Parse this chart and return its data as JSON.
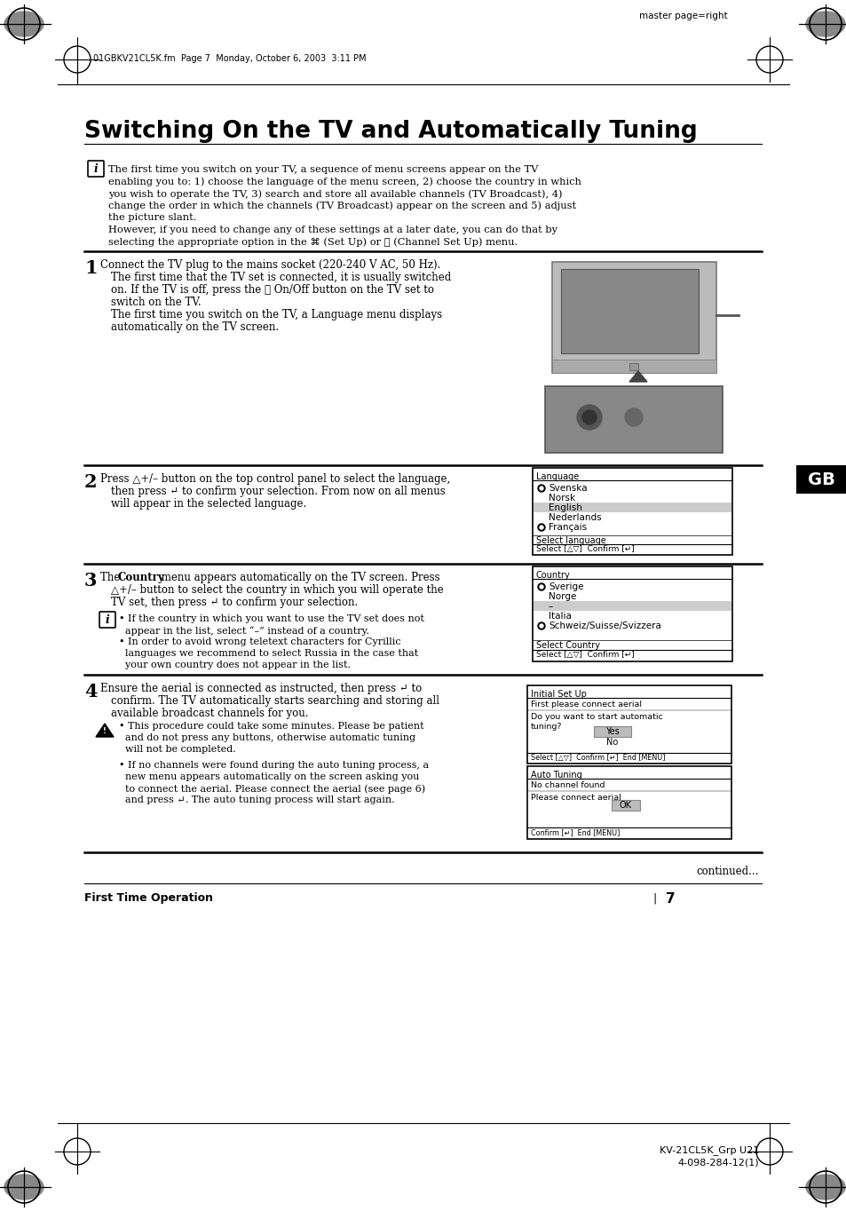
{
  "title": "Switching On the TV and Automatically Tuning",
  "header_text": "master page=right",
  "file_info": "01GBKV21CL5K.fm  Page 7  Monday, October 6, 2003  3:11 PM",
  "bg_color": "#ffffff",
  "step1_text_lines": [
    "Connect the TV plug to the mains socket (220-240 V AC, 50 Hz).",
    "The first time that the TV set is connected, it is usually switched",
    "on. If the TV is off, press the Ⓣ On/Off button on the TV set to",
    "switch on the TV.",
    "The first time you switch on the TV, a Language menu displays",
    "automatically on the TV screen."
  ],
  "step2_text_lines": [
    "Press △+/– button on the top control panel to select the language,",
    "then press ↵ to confirm your selection. From now on all menus",
    "will appear in the selected language."
  ],
  "step3_text_lines": [
    "The Country menu appears automatically on the TV screen. Press",
    "△+/– button to select the country in which you will operate the",
    "TV set, then press ↵ to confirm your selection."
  ],
  "step3_note1_lines": [
    "• If the country in which you want to use the TV set does not",
    "  appear in the list, select “–” instead of a country."
  ],
  "step3_note2_lines": [
    "• In order to avoid wrong teletext characters for Cyrillic",
    "  languages we recommend to select Russia in the case that",
    "  your own country does not appear in the list."
  ],
  "step4_text_lines": [
    "Ensure the aerial is connected as instructed, then press ↵ to",
    "confirm. The TV automatically starts searching and storing all",
    "available broadcast channels for you."
  ],
  "step4_note1_lines": [
    "• This procedure could take some minutes. Please be patient",
    "  and do not press any buttons, otherwise automatic tuning",
    "  will not be completed."
  ],
  "step4_note2_lines": [
    "• If no channels were found during the auto tuning process, a",
    "  new menu appears automatically on the screen asking you",
    "  to connect the aerial. Please connect the aerial (see page 6)",
    "  and press ↵. The auto tuning process will start again."
  ],
  "intro_lines": [
    "The first time you switch on your TV, a sequence of menu screens appear on the TV",
    "enabling you to: 1) choose the language of the menu screen, 2) choose the country in which",
    "you wish to operate the TV, 3) search and store all available channels (TV Broadcast), 4)",
    "change the order in which the channels (TV Broadcast) appear on the screen and 5) adjust",
    "the picture slant.",
    "However, if you need to change any of these settings at a later date, you can do that by",
    "selecting the appropriate option in the ⌘ (Set Up) or ⎙ (Channel Set Up) menu."
  ],
  "continued": "continued...",
  "footer_left": "First Time Operation",
  "footer_pipe": "|",
  "footer_page": "7",
  "footer_right1": "KV-21CL5K_Grp U21",
  "footer_right2": "4-098-284-12(1)",
  "gb_label": "GB",
  "language_menu_items": [
    "Svenska",
    "Norsk",
    "English",
    "Nederlands",
    "Français"
  ],
  "language_menu_selected": "English",
  "language_menu_bullets": [
    "Svenska",
    "Français"
  ],
  "country_menu_items": [
    "Sverige",
    "Norge",
    "–",
    "Italia",
    "Schweiz/Suisse/Svizzera"
  ],
  "country_menu_selected": "–",
  "country_menu_bullets": [
    "Sverige",
    "Schweiz/Suisse/Svizzera"
  ]
}
